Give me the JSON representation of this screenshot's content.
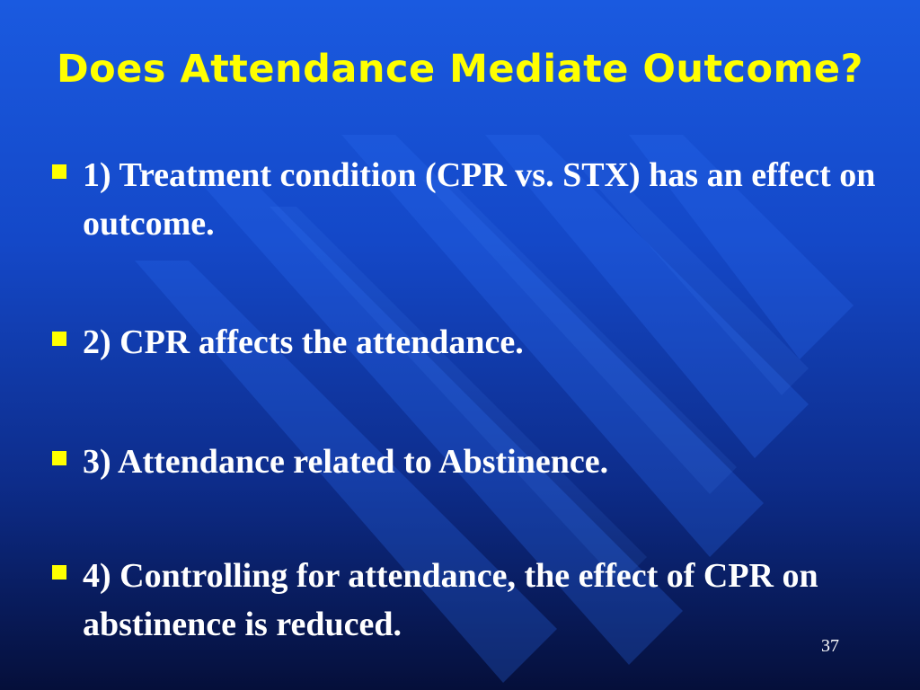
{
  "slide": {
    "title": "Does Attendance Mediate Outcome?",
    "bullets": [
      {
        "text": "1) Treatment condition (CPR vs. STX) has an effect on outcome."
      },
      {
        "text": "2) CPR affects the attendance."
      },
      {
        "text": "3) Attendance related to Abstinence."
      },
      {
        "text": "4) Controlling for attendance, the effect of CPR on abstinence is reduced."
      }
    ],
    "page_number": "37"
  },
  "colors": {
    "title": "#ffff00",
    "bullet_marker": "#ffff00",
    "body_text": "#ffffff",
    "background_top": "#1a5ae0",
    "background_bottom": "#050f3a"
  }
}
